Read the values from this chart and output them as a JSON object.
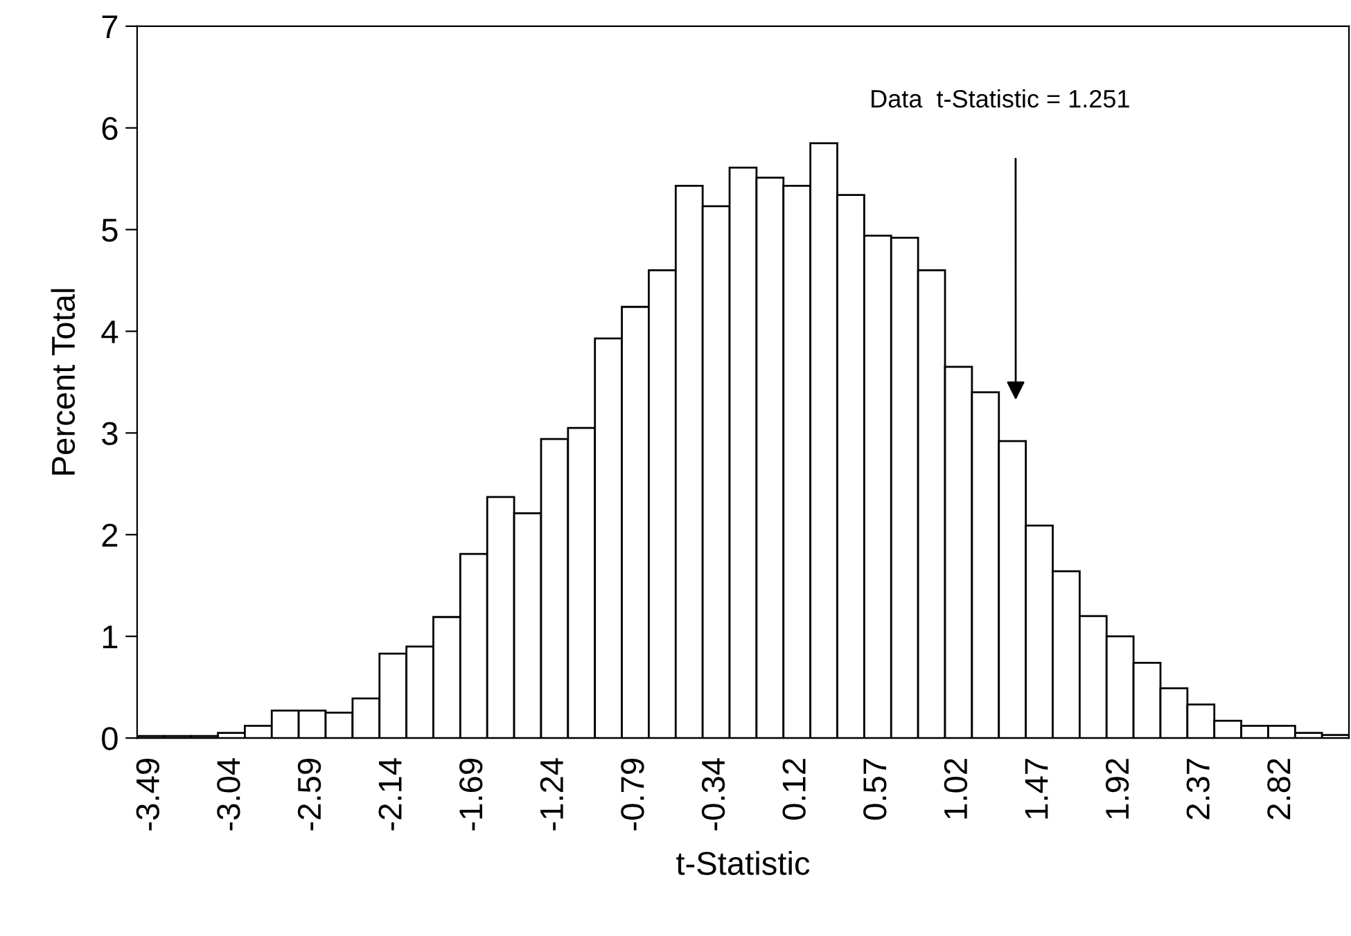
{
  "chart_data": {
    "type": "bar",
    "xlabel": "t-Statistic",
    "ylabel": "Percent Total",
    "categories": [
      "-3.49",
      null,
      null,
      "-3.04",
      null,
      null,
      "-2.59",
      null,
      null,
      "-2.14",
      null,
      null,
      "-1.69",
      null,
      null,
      "-1.24",
      null,
      null,
      "-0.79",
      null,
      null,
      "-0.34",
      null,
      null,
      "0.12",
      null,
      null,
      "0.57",
      null,
      null,
      "1.02",
      null,
      null,
      "1.47",
      null,
      null,
      "1.92",
      null,
      null,
      "2.37",
      null,
      null,
      "2.82",
      null,
      null
    ],
    "values": [
      0.02,
      0.02,
      0.02,
      0.05,
      0.12,
      0.27,
      0.27,
      0.25,
      0.39,
      0.83,
      0.9,
      1.19,
      1.81,
      2.37,
      2.21,
      2.94,
      3.05,
      3.93,
      4.24,
      4.6,
      5.43,
      5.23,
      5.61,
      5.51,
      5.43,
      5.85,
      5.34,
      4.94,
      4.92,
      4.6,
      3.65,
      3.4,
      2.92,
      2.09,
      1.64,
      1.2,
      1.0,
      0.74,
      0.49,
      0.33,
      0.17,
      0.12,
      0.12,
      0.05,
      0.03
    ],
    "color": "#ffffff",
    "ylim": [
      0,
      7
    ],
    "yticks": [
      0,
      1,
      2,
      3,
      4,
      5,
      6,
      7
    ],
    "annotations": [
      "Data  t-Statistic = 1.251"
    ],
    "grid": false
  }
}
